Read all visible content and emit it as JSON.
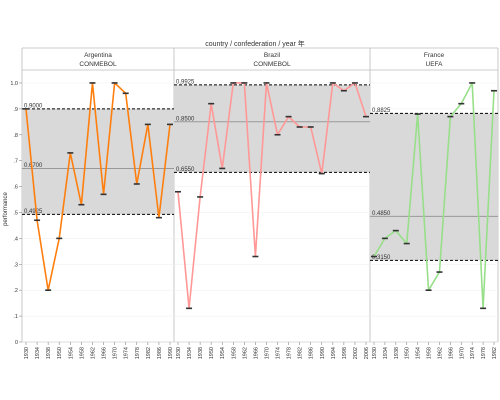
{
  "chart_data": {
    "type": "line",
    "title": "country / confederation / year 年",
    "ylabel": "performance",
    "ylim": [
      0,
      1.05
    ],
    "y_ticks": [
      "0",
      ".1",
      ".2",
      ".3",
      ".4",
      ".5",
      ".6",
      ".7",
      ".8",
      ".9",
      "1.0"
    ],
    "x": [
      "1930",
      "1934",
      "1938",
      "1950",
      "1954",
      "1958",
      "1962",
      "1966",
      "1970",
      "1974",
      "1978",
      "1982",
      "1986",
      "1990",
      "1994",
      "1998",
      "2002",
      "2006"
    ],
    "grid": true,
    "panels": [
      {
        "country": "Argentina",
        "confederation": "CONMEBOL",
        "color": "#ff7f0e",
        "values": [
          0.9,
          0.47,
          0.2,
          0.4,
          0.73,
          0.53,
          1.0,
          0.57,
          1.0,
          0.96,
          0.61,
          0.84,
          0.48,
          0.84
        ],
        "band": {
          "upper": 0.9,
          "mean": 0.67,
          "lower": 0.4925
        },
        "band_labels": {
          "upper": "0.9000",
          "mean": "0.6700",
          "lower": "0.4925"
        }
      },
      {
        "country": "Brazil",
        "confederation": "CONMEBOL",
        "color": "#ff9896",
        "values": [
          0.58,
          0.13,
          0.56,
          0.92,
          0.67,
          1.0,
          1.0,
          0.33,
          1.0,
          0.8,
          0.87,
          0.83,
          0.83,
          0.65,
          1.0,
          0.97,
          1.0,
          0.87
        ],
        "band": {
          "upper": 0.9925,
          "mean": 0.85,
          "lower": 0.655
        },
        "band_labels": {
          "upper": "0.9925",
          "mean": "0.8500",
          "lower": "0.6550"
        }
      },
      {
        "country": "France",
        "confederation": "UEFA",
        "color": "#98df8a",
        "values": [
          0.33,
          0.4,
          0.43,
          0.38,
          0.88,
          0.2,
          0.27,
          0.87,
          0.92,
          1.0,
          0.13,
          0.97
        ],
        "band": {
          "upper": 0.8825,
          "mean": 0.485,
          "lower": 0.315
        },
        "band_labels": {
          "upper": "0.8825",
          "mean": "0.4850",
          "lower": "0.3150"
        }
      }
    ]
  }
}
